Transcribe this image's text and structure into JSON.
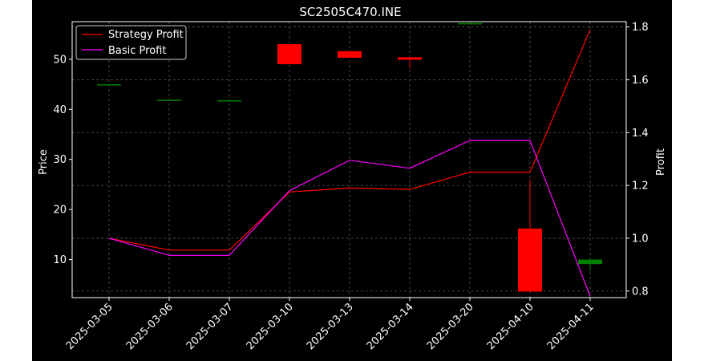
{
  "chart_data": {
    "type": "candlestick+line",
    "title": "SC2505C470.INE",
    "xlabel": "",
    "ylabel_left": "Price",
    "ylabel_right": "Profit",
    "categories": [
      "2025-03-05",
      "2025-03-06",
      "2025-03-07",
      "2025-03-10",
      "2025-03-13",
      "2025-03-14",
      "2025-03-20",
      "2025-04-10",
      "2025-04-11"
    ],
    "ylim_left": [
      2.4,
      57.5
    ],
    "yticks_left": [
      10,
      20,
      30,
      40,
      50
    ],
    "ylim_right": [
      0.775,
      1.82
    ],
    "yticks_right": [
      "0.8",
      "1.0",
      "1.2",
      "1.4",
      "1.6",
      "1.8"
    ],
    "grid": true,
    "candles": [
      {
        "date": "2025-03-05",
        "open": 45.0,
        "high": 45.0,
        "low": 45.0,
        "close": 45.0
      },
      {
        "date": "2025-03-06",
        "open": 41.9,
        "high": 41.9,
        "low": 41.9,
        "close": 41.9
      },
      {
        "date": "2025-03-07",
        "open": 41.8,
        "high": 41.8,
        "low": 41.8,
        "close": 41.8
      },
      {
        "date": "2025-03-10",
        "open": 53.0,
        "high": 53.0,
        "low": 49.0,
        "close": 49.0
      },
      {
        "date": "2025-03-13",
        "open": 51.6,
        "high": 51.6,
        "low": 50.3,
        "close": 50.3
      },
      {
        "date": "2025-03-14",
        "open": 50.4,
        "high": 50.4,
        "low": 48.2,
        "close": 49.9
      },
      {
        "date": "2025-03-20",
        "open": 57.2,
        "high": 57.2,
        "low": 57.2,
        "close": 57.2
      },
      {
        "date": "2025-04-10",
        "open": 16.2,
        "high": 26.0,
        "low": 3.6,
        "close": 3.6
      },
      {
        "date": "2025-04-11",
        "open": 9.1,
        "high": 10.0,
        "low": 7.7,
        "close": 10.0
      }
    ],
    "series": [
      {
        "name": "Strategy Profit",
        "color": "#ff0000",
        "axis": "right",
        "values": [
          1.0,
          0.955,
          0.955,
          1.175,
          1.19,
          1.185,
          1.25,
          1.25,
          1.79
        ]
      },
      {
        "name": "Basic Profit",
        "color": "#ff00ff",
        "axis": "right",
        "values": [
          1.0,
          0.935,
          0.935,
          1.18,
          1.295,
          1.265,
          1.37,
          1.37,
          0.78
        ]
      }
    ],
    "legend": {
      "placement": "top-left"
    },
    "colors": {
      "up": "#008000",
      "down": "#ff0000",
      "background": "#000000",
      "foreground": "#ffffff",
      "grid": "#555555"
    }
  }
}
